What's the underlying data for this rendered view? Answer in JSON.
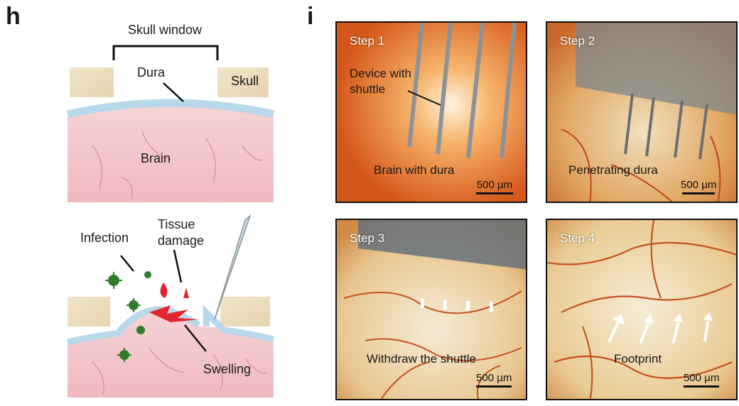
{
  "panel_h": {
    "letter": "h",
    "top": {
      "skull_window": "Skull window",
      "dura": "Dura",
      "skull": "Skull",
      "brain": "Brain"
    },
    "bottom": {
      "infection": "Infection",
      "tissue_damage": [
        "Tissue",
        "damage"
      ],
      "swelling": "Swelling"
    },
    "colors": {
      "skull": "#eedfc2",
      "dura": "#b9d8ea",
      "brain": "#f3c9ce",
      "infection": "#2f7d2a",
      "damage": "#e3262d"
    }
  },
  "panel_i": {
    "letter": "i",
    "steps": [
      {
        "step": "Step 1",
        "caption": "Brain with dura",
        "annotation": [
          "Device with",
          "shuttle"
        ],
        "scale": "500 µm"
      },
      {
        "step": "Step 2",
        "caption": "Penetrating dura",
        "scale": "500 µm"
      },
      {
        "step": "Step 3",
        "caption": "Withdraw the shuttle",
        "scale": "500 µm"
      },
      {
        "step": "Step 4",
        "caption": "Footprint",
        "scale": "500 µm"
      }
    ]
  }
}
